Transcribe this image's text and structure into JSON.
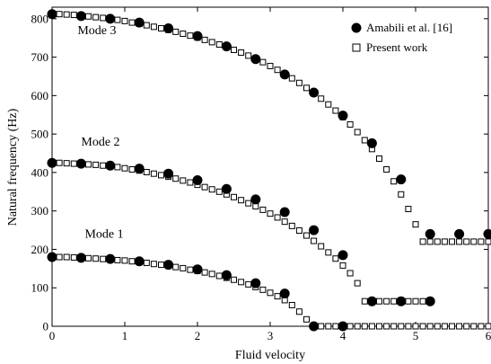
{
  "chart_data": {
    "type": "scatter",
    "xlabel": "Fluid velocity",
    "ylabel": "Natural frequency (Hz)",
    "xlim": [
      0,
      6
    ],
    "ylim": [
      0,
      830
    ],
    "xticks": [
      "0",
      "1",
      "2",
      "3",
      "4",
      "5",
      "6"
    ],
    "yticks": [
      "0",
      "100",
      "200",
      "300",
      "400",
      "500",
      "600",
      "700",
      "800"
    ],
    "legend_position": "top-right",
    "annotations": [
      {
        "text": "Mode 3",
        "x": 0.35,
        "y": 760
      },
      {
        "text": "Mode 2",
        "x": 0.4,
        "y": 470
      },
      {
        "text": "Mode 1",
        "x": 0.45,
        "y": 230
      }
    ],
    "series": [
      {
        "name": "Amabili et al. [16]",
        "marker": "filled-circle",
        "color": "#000000",
        "groups": [
          {
            "mode": "Mode 3",
            "x": [
              0,
              0.4,
              0.8,
              1.2,
              1.6,
              2.0,
              2.4,
              2.8,
              3.2,
              3.6,
              4.0,
              4.4,
              4.8,
              5.2,
              5.6,
              6.0
            ],
            "y": [
              812,
              807,
              800,
              790,
              775,
              755,
              728,
              695,
              655,
              608,
              548,
              476,
              382,
              240,
              240,
              240
            ]
          },
          {
            "mode": "Mode 2",
            "x": [
              0,
              0.4,
              0.8,
              1.2,
              1.6,
              2.0,
              2.4,
              2.8,
              3.2,
              3.6,
              4.0,
              4.4,
              4.8,
              5.2
            ],
            "y": [
              425,
              423,
              418,
              410,
              397,
              380,
              357,
              330,
              297,
              250,
              185,
              65,
              65,
              65
            ]
          },
          {
            "mode": "Mode 1",
            "x": [
              0,
              0.4,
              0.8,
              1.2,
              1.6,
              2.0,
              2.4,
              2.8,
              3.2,
              3.6,
              4.0
            ],
            "y": [
              180,
              178,
              175,
              169,
              160,
              148,
              133,
              112,
              85,
              0,
              0
            ]
          }
        ]
      },
      {
        "name": "Present work",
        "marker": "open-square",
        "color": "#000000",
        "groups": [
          {
            "mode": "Mode 3",
            "x": [
              0,
              0.1,
              0.2,
              0.3,
              0.4,
              0.5,
              0.6,
              0.7,
              0.8,
              0.9,
              1.0,
              1.1,
              1.2,
              1.3,
              1.4,
              1.5,
              1.6,
              1.7,
              1.8,
              1.9,
              2.0,
              2.1,
              2.2,
              2.3,
              2.4,
              2.5,
              2.6,
              2.7,
              2.8,
              2.9,
              3.0,
              3.1,
              3.2,
              3.3,
              3.4,
              3.5,
              3.6,
              3.7,
              3.8,
              3.9,
              4.0,
              4.1,
              4.2,
              4.3,
              4.4,
              4.5,
              4.6,
              4.7,
              4.8,
              4.9,
              5.0,
              5.1,
              5.2,
              5.3,
              5.4,
              5.5,
              5.6,
              5.7,
              5.8,
              5.9,
              6.0
            ],
            "y": [
              812,
              812,
              811,
              810,
              808,
              806,
              804,
              802,
              800,
              797,
              794,
              790,
              787,
              783,
              779,
              775,
              771,
              766,
              761,
              756,
              751,
              745,
              739,
              733,
              726,
              719,
              712,
              704,
              696,
              687,
              677,
              667,
              656,
              645,
              633,
              620,
              606,
              592,
              577,
              561,
              544,
              525,
              505,
              484,
              461,
              436,
              408,
              377,
              343,
              305,
              265,
              220,
              220,
              220,
              220,
              220,
              220,
              220,
              220,
              220,
              220
            ]
          },
          {
            "mode": "Mode 2",
            "x": [
              0,
              0.1,
              0.2,
              0.3,
              0.4,
              0.5,
              0.6,
              0.7,
              0.8,
              0.9,
              1.0,
              1.1,
              1.2,
              1.3,
              1.4,
              1.5,
              1.6,
              1.7,
              1.8,
              1.9,
              2.0,
              2.1,
              2.2,
              2.3,
              2.4,
              2.5,
              2.6,
              2.7,
              2.8,
              2.9,
              3.0,
              3.1,
              3.2,
              3.3,
              3.4,
              3.5,
              3.6,
              3.7,
              3.8,
              3.9,
              4.0,
              4.1,
              4.2,
              4.3,
              4.4,
              4.5,
              4.6,
              4.7,
              4.8,
              4.9,
              5.0,
              5.1,
              5.2
            ],
            "y": [
              425,
              425,
              424,
              423,
              422,
              421,
              420,
              418,
              416,
              414,
              411,
              408,
              405,
              401,
              397,
              393,
              389,
              384,
              379,
              374,
              368,
              362,
              356,
              350,
              343,
              336,
              328,
              320,
              312,
              303,
              293,
              283,
              272,
              261,
              249,
              236,
              222,
              208,
              192,
              176,
              158,
              138,
              112,
              65,
              65,
              65,
              65,
              65,
              65,
              65,
              65,
              65,
              65
            ]
          },
          {
            "mode": "Mode 1",
            "x": [
              0,
              0.1,
              0.2,
              0.3,
              0.4,
              0.5,
              0.6,
              0.7,
              0.8,
              0.9,
              1.0,
              1.1,
              1.2,
              1.3,
              1.4,
              1.5,
              1.6,
              1.7,
              1.8,
              1.9,
              2.0,
              2.1,
              2.2,
              2.3,
              2.4,
              2.5,
              2.6,
              2.7,
              2.8,
              2.9,
              3.0,
              3.1,
              3.2,
              3.3,
              3.4,
              3.5,
              3.6,
              3.7,
              3.8,
              3.9,
              4.0,
              4.1,
              4.2,
              4.3,
              4.4,
              4.5,
              4.6,
              4.7,
              4.8,
              4.9,
              5.0,
              5.1,
              5.2,
              5.3,
              5.4,
              5.5,
              5.6,
              5.7,
              5.8,
              5.9,
              6.0
            ],
            "y": [
              180,
              180,
              180,
              179,
              178,
              177,
              176,
              175,
              174,
              172,
              171,
              169,
              167,
              165,
              162,
              160,
              157,
              154,
              151,
              147,
              144,
              140,
              136,
              131,
              126,
              121,
              115,
              109,
              102,
              95,
              87,
              78,
              68,
              55,
              38,
              18,
              0,
              0,
              0,
              0,
              0,
              0,
              0,
              0,
              0,
              0,
              0,
              0,
              0,
              0,
              0,
              0,
              0,
              0,
              0,
              0,
              0,
              0,
              0,
              0,
              0
            ]
          }
        ]
      }
    ]
  }
}
